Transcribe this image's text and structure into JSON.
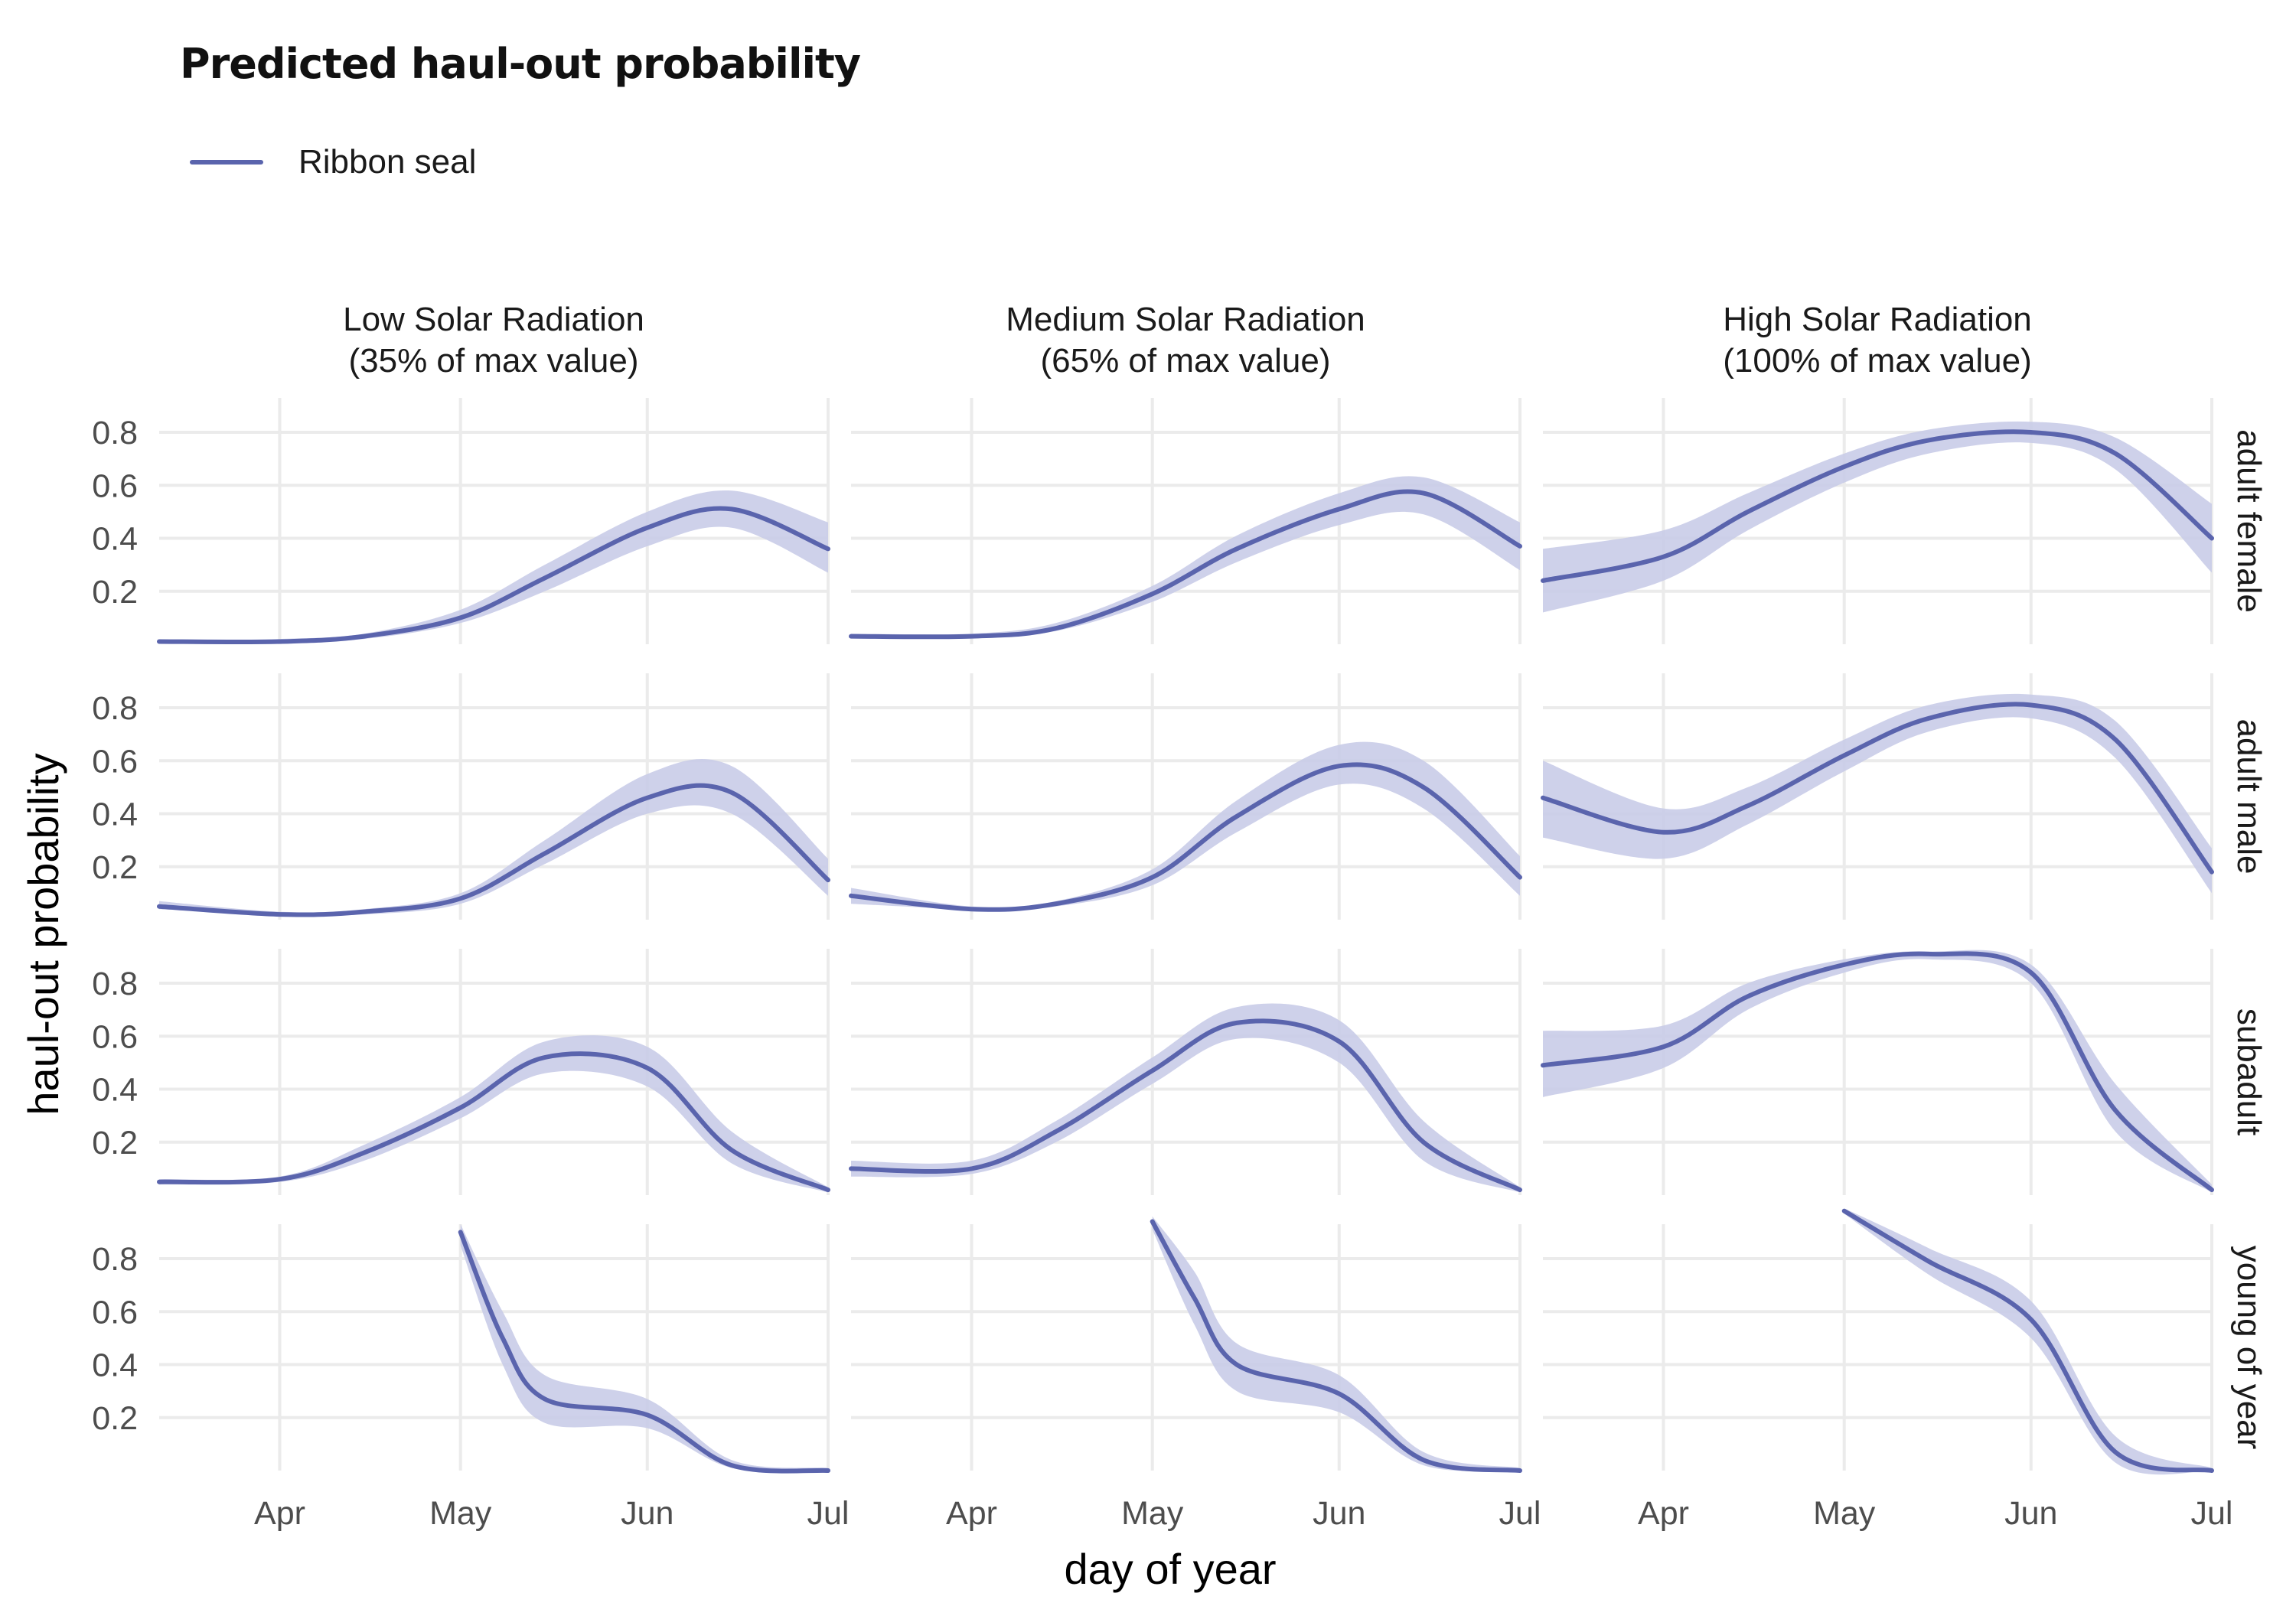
{
  "title": "Predicted haul-out probability",
  "legend": {
    "label": "Ribbon seal",
    "color": "#5A64AD"
  },
  "colors": {
    "line": "#5A64AD",
    "ribbon": "#C9CCE8",
    "grid": "#EBEBEB"
  },
  "chart_data": {
    "type": "line",
    "title": "Predicted haul-out probability",
    "xlabel": "day of year",
    "ylabel": "haul-out probability",
    "xlim": [
      "Mar 12",
      "Jul 1"
    ],
    "ylim": [
      0,
      0.93
    ],
    "x_ticks": [
      "Apr",
      "May",
      "Jun",
      "Jul"
    ],
    "y_ticks": [
      "0.2",
      "0.4",
      "0.6",
      "0.8"
    ],
    "grid": true,
    "legend_position": "top-left",
    "columns": [
      {
        "title": "Low Solar Radiation",
        "subtitle": "(35% of max value)"
      },
      {
        "title": "Medium Solar Radiation",
        "subtitle": "(65% of max value)"
      },
      {
        "title": "High Solar Radiation",
        "subtitle": "(100% of max value)"
      }
    ],
    "rows": [
      "adult female",
      "adult male",
      "subadult",
      "young of year"
    ],
    "series": [
      {
        "name": "Ribbon seal",
        "panels": [
          [
            {
              "x": [
                "Mar 12",
                "Apr 1",
                "Apr 15",
                "May 1",
                "May 15",
                "Jun 1",
                "Jun 15",
                "Jul 1"
              ],
              "y": [
                0.01,
                0.01,
                0.03,
                0.1,
                0.25,
                0.44,
                0.51,
                0.36
              ],
              "lo": [
                0.01,
                0.01,
                0.02,
                0.08,
                0.2,
                0.37,
                0.44,
                0.27
              ],
              "hi": [
                0.01,
                0.02,
                0.04,
                0.13,
                0.3,
                0.5,
                0.58,
                0.46
              ]
            },
            {
              "x": [
                "Mar 12",
                "Apr 1",
                "Apr 15",
                "May 1",
                "May 15",
                "Jun 1",
                "Jun 15",
                "Jul 1"
              ],
              "y": [
                0.03,
                0.03,
                0.06,
                0.19,
                0.36,
                0.51,
                0.57,
                0.37
              ],
              "lo": [
                0.03,
                0.03,
                0.05,
                0.16,
                0.31,
                0.45,
                0.49,
                0.28
              ],
              "hi": [
                0.04,
                0.04,
                0.08,
                0.22,
                0.41,
                0.57,
                0.63,
                0.46
              ]
            },
            {
              "x": [
                "Mar 12",
                "Apr 1",
                "Apr 15",
                "May 1",
                "May 15",
                "Jun 1",
                "Jun 15",
                "Jul 1"
              ],
              "y": [
                0.24,
                0.33,
                0.5,
                0.67,
                0.77,
                0.8,
                0.72,
                0.4
              ],
              "lo": [
                0.12,
                0.24,
                0.43,
                0.61,
                0.72,
                0.76,
                0.66,
                0.27
              ],
              "hi": [
                0.36,
                0.43,
                0.57,
                0.72,
                0.81,
                0.84,
                0.78,
                0.53
              ]
            }
          ],
          [
            {
              "x": [
                "Mar 12",
                "Apr 1",
                "Apr 15",
                "May 1",
                "May 15",
                "Jun 1",
                "Jun 15",
                "Jul 1"
              ],
              "y": [
                0.05,
                0.02,
                0.03,
                0.08,
                0.25,
                0.46,
                0.48,
                0.15
              ],
              "lo": [
                0.04,
                0.02,
                0.02,
                0.06,
                0.21,
                0.4,
                0.4,
                0.09
              ],
              "hi": [
                0.07,
                0.03,
                0.04,
                0.1,
                0.3,
                0.55,
                0.58,
                0.23
              ]
            },
            {
              "x": [
                "Mar 12",
                "Apr 1",
                "Apr 15",
                "May 1",
                "May 15",
                "Jun 1",
                "Jun 15",
                "Jul 1"
              ],
              "y": [
                0.09,
                0.04,
                0.06,
                0.16,
                0.39,
                0.58,
                0.5,
                0.16
              ],
              "lo": [
                0.06,
                0.04,
                0.05,
                0.13,
                0.33,
                0.51,
                0.42,
                0.09
              ],
              "hi": [
                0.12,
                0.05,
                0.07,
                0.19,
                0.45,
                0.66,
                0.6,
                0.24
              ]
            },
            {
              "x": [
                "Mar 12",
                "Apr 1",
                "Apr 15",
                "May 1",
                "May 15",
                "Jun 1",
                "Jun 15",
                "Jul 1"
              ],
              "y": [
                0.46,
                0.33,
                0.43,
                0.62,
                0.76,
                0.81,
                0.68,
                0.18
              ],
              "lo": [
                0.31,
                0.23,
                0.36,
                0.56,
                0.71,
                0.76,
                0.61,
                0.1
              ],
              "hi": [
                0.6,
                0.42,
                0.5,
                0.68,
                0.81,
                0.85,
                0.75,
                0.27
              ]
            }
          ],
          [
            {
              "x": [
                "Mar 12",
                "Apr 1",
                "Apr 15",
                "May 1",
                "May 15",
                "Jun 1",
                "Jun 15",
                "Jul 1"
              ],
              "y": [
                0.05,
                0.06,
                0.16,
                0.33,
                0.52,
                0.48,
                0.17,
                0.02
              ],
              "lo": [
                0.04,
                0.05,
                0.13,
                0.29,
                0.46,
                0.41,
                0.12,
                0.01
              ],
              "hi": [
                0.06,
                0.07,
                0.19,
                0.37,
                0.58,
                0.56,
                0.24,
                0.03
              ]
            },
            {
              "x": [
                "Mar 12",
                "Apr 1",
                "Apr 15",
                "May 1",
                "May 15",
                "Jun 1",
                "Jun 15",
                "Jul 1"
              ],
              "y": [
                0.1,
                0.1,
                0.24,
                0.47,
                0.65,
                0.58,
                0.2,
                0.02
              ],
              "lo": [
                0.07,
                0.08,
                0.2,
                0.42,
                0.59,
                0.5,
                0.13,
                0.01
              ],
              "hi": [
                0.13,
                0.13,
                0.28,
                0.52,
                0.71,
                0.66,
                0.28,
                0.03
              ]
            },
            {
              "x": [
                "Mar 12",
                "Apr 1",
                "Apr 15",
                "May 1",
                "May 15",
                "Jun 1",
                "Jun 15",
                "Jul 1"
              ],
              "y": [
                0.49,
                0.56,
                0.75,
                0.87,
                0.91,
                0.84,
                0.32,
                0.02
              ],
              "lo": [
                0.37,
                0.48,
                0.7,
                0.84,
                0.89,
                0.8,
                0.24,
                0.01
              ],
              "hi": [
                0.62,
                0.64,
                0.8,
                0.89,
                0.92,
                0.87,
                0.42,
                0.04
              ]
            }
          ],
          [
            {
              "x": [
                "May 1",
                "May 8",
                "May 15",
                "Jun 1",
                "Jun 15",
                "Jul 1"
              ],
              "y": [
                0.9,
                0.5,
                0.27,
                0.21,
                0.02,
                0.0
              ],
              "lo": [
                0.85,
                0.4,
                0.18,
                0.16,
                0.01,
                0.0
              ],
              "hi": [
                0.93,
                0.6,
                0.36,
                0.27,
                0.04,
                0.01
              ]
            },
            {
              "x": [
                "May 1",
                "May 8",
                "May 15",
                "Jun 1",
                "Jun 15",
                "Jul 1"
              ],
              "y": [
                0.94,
                0.65,
                0.4,
                0.29,
                0.04,
                0.0
              ],
              "lo": [
                0.91,
                0.55,
                0.3,
                0.22,
                0.02,
                0.0
              ],
              "hi": [
                0.96,
                0.75,
                0.48,
                0.36,
                0.07,
                0.01
              ]
            },
            {
              "x": [
                "May 1",
                "May 15",
                "Jun 1",
                "Jun 15",
                "Jul 1"
              ],
              "y": [
                0.98,
                0.79,
                0.57,
                0.07,
                0.0
              ],
              "lo": [
                0.97,
                0.74,
                0.5,
                0.03,
                0.0
              ],
              "hi": [
                0.99,
                0.84,
                0.64,
                0.13,
                0.01
              ]
            }
          ]
        ]
      }
    ]
  }
}
